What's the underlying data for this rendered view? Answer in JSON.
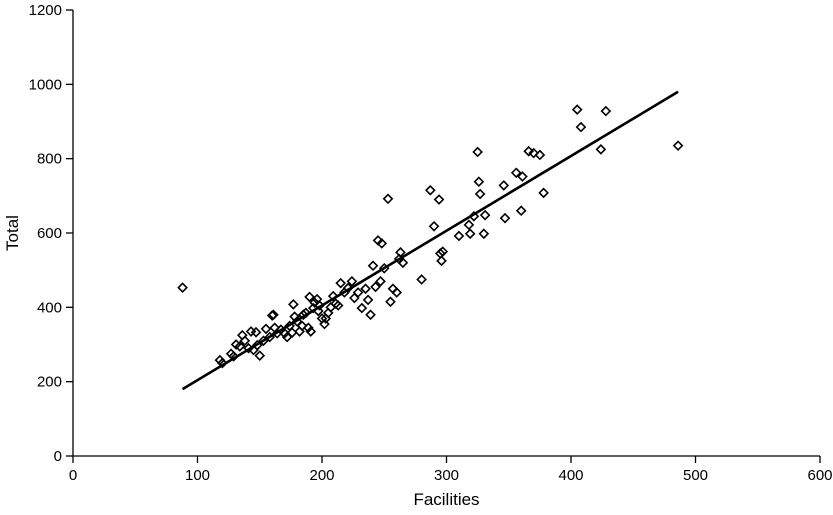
{
  "chart_data": {
    "type": "scatter",
    "xlabel": "Facilities",
    "ylabel": "Total",
    "xlim": [
      0,
      600
    ],
    "ylim": [
      0,
      1200
    ],
    "xticks": [
      0,
      100,
      200,
      300,
      400,
      500,
      600
    ],
    "yticks": [
      0,
      200,
      400,
      600,
      800,
      1000,
      1200
    ],
    "grid": false,
    "legend": "none",
    "colors": {
      "marker": "#000000",
      "line": "#000000"
    },
    "points": [
      [
        88,
        453
      ],
      [
        118,
        258
      ],
      [
        120,
        250
      ],
      [
        127,
        275
      ],
      [
        129,
        268
      ],
      [
        131,
        300
      ],
      [
        134,
        295
      ],
      [
        136,
        325
      ],
      [
        138,
        310
      ],
      [
        141,
        290
      ],
      [
        143,
        335
      ],
      [
        145,
        285
      ],
      [
        147,
        333
      ],
      [
        148,
        298
      ],
      [
        150,
        270
      ],
      [
        153,
        310
      ],
      [
        155,
        342
      ],
      [
        158,
        320
      ],
      [
        160,
        378
      ],
      [
        161,
        380
      ],
      [
        162,
        345
      ],
      [
        164,
        330
      ],
      [
        167,
        340
      ],
      [
        170,
        330
      ],
      [
        172,
        320
      ],
      [
        174,
        350
      ],
      [
        176,
        332
      ],
      [
        177,
        408
      ],
      [
        178,
        375
      ],
      [
        180,
        362
      ],
      [
        182,
        335
      ],
      [
        184,
        350
      ],
      [
        185,
        380
      ],
      [
        187,
        385
      ],
      [
        189,
        345
      ],
      [
        190,
        428
      ],
      [
        191,
        335
      ],
      [
        193,
        398
      ],
      [
        194,
        413
      ],
      [
        196,
        422
      ],
      [
        197,
        390
      ],
      [
        198,
        405
      ],
      [
        200,
        370
      ],
      [
        202,
        355
      ],
      [
        203,
        370
      ],
      [
        205,
        385
      ],
      [
        207,
        400
      ],
      [
        209,
        430
      ],
      [
        211,
        410
      ],
      [
        213,
        405
      ],
      [
        215,
        465
      ],
      [
        218,
        440
      ],
      [
        221,
        452
      ],
      [
        224,
        470
      ],
      [
        226,
        425
      ],
      [
        229,
        440
      ],
      [
        232,
        398
      ],
      [
        235,
        450
      ],
      [
        237,
        420
      ],
      [
        239,
        380
      ],
      [
        241,
        512
      ],
      [
        243,
        455
      ],
      [
        245,
        580
      ],
      [
        247,
        470
      ],
      [
        248,
        572
      ],
      [
        250,
        505
      ],
      [
        253,
        692
      ],
      [
        255,
        415
      ],
      [
        257,
        450
      ],
      [
        260,
        440
      ],
      [
        262,
        530
      ],
      [
        263,
        548
      ],
      [
        265,
        520
      ],
      [
        280,
        475
      ],
      [
        287,
        715
      ],
      [
        290,
        618
      ],
      [
        294,
        690
      ],
      [
        295,
        545
      ],
      [
        296,
        525
      ],
      [
        297,
        550
      ],
      [
        310,
        592
      ],
      [
        318,
        622
      ],
      [
        319,
        598
      ],
      [
        322,
        645
      ],
      [
        325,
        818
      ],
      [
        326,
        738
      ],
      [
        327,
        705
      ],
      [
        330,
        598
      ],
      [
        331,
        648
      ],
      [
        346,
        728
      ],
      [
        347,
        640
      ],
      [
        356,
        762
      ],
      [
        360,
        660
      ],
      [
        361,
        752
      ],
      [
        366,
        820
      ],
      [
        370,
        815
      ],
      [
        375,
        810
      ],
      [
        378,
        708
      ],
      [
        405,
        932
      ],
      [
        408,
        885
      ],
      [
        424,
        825
      ],
      [
        428,
        928
      ],
      [
        486,
        835
      ]
    ],
    "trendline": {
      "x": [
        88,
        486
      ],
      "y": [
        180,
        980
      ]
    }
  }
}
